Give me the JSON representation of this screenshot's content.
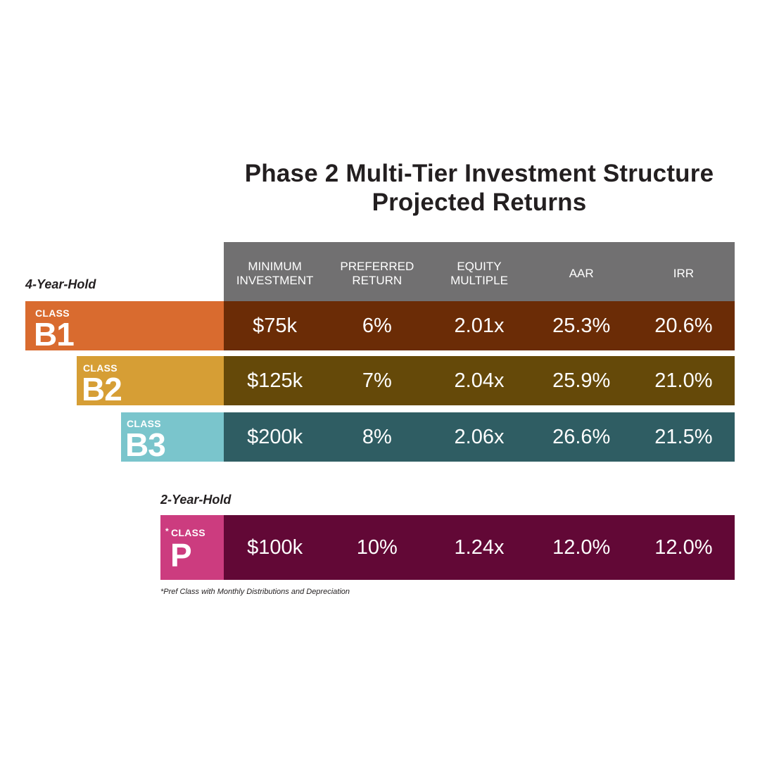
{
  "title": {
    "line1": "Phase 2 Multi-Tier Investment Structure",
    "line2": "Projected Returns"
  },
  "columns": [
    [
      "MINIMUM",
      "INVESTMENT"
    ],
    [
      "PREFERRED",
      "RETURN"
    ],
    [
      "EQUITY",
      "MULTIPLE"
    ],
    [
      "",
      "AAR"
    ],
    [
      "",
      "IRR"
    ]
  ],
  "groups": {
    "four_year": "4-Year-Hold",
    "two_year": "2-Year-Hold"
  },
  "classes": [
    {
      "class_label": "CLASS",
      "name": "B1",
      "badge_color": "#d96b2f",
      "row_color": "#6b2c06",
      "values": [
        "$75k",
        "6%",
        "2.01x",
        "25.3%",
        "20.6%"
      ]
    },
    {
      "class_label": "CLASS",
      "name": "B2",
      "badge_color": "#d69e35",
      "row_color": "#654909",
      "values": [
        "$125k",
        "7%",
        "2.04x",
        "25.9%",
        "21.0%"
      ]
    },
    {
      "class_label": "CLASS",
      "name": "B3",
      "badge_color": "#7ac5cc",
      "row_color": "#2f5d63",
      "values": [
        "$200k",
        "8%",
        "2.06x",
        "26.6%",
        "21.5%"
      ]
    },
    {
      "class_label": "CLASS",
      "name": "P",
      "marker": "*",
      "badge_color": "#cc3c7f",
      "row_color": "#620836",
      "values": [
        "$100k",
        "10%",
        "1.24x",
        "12.0%",
        "12.0%"
      ]
    }
  ],
  "footnote": "*Pref Class with Monthly Distributions and Depreciation"
}
